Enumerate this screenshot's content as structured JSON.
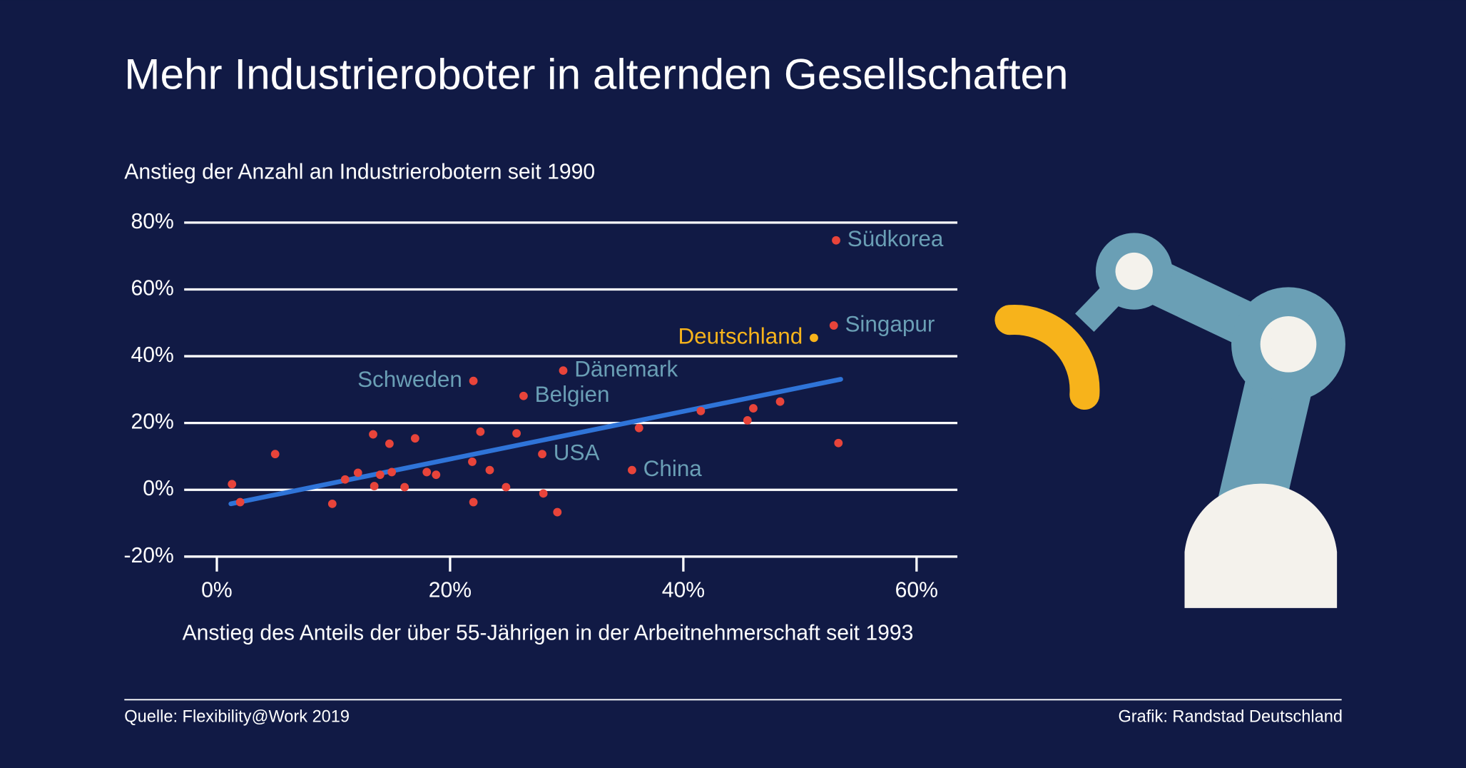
{
  "chart_data": {
    "type": "scatter",
    "title": "Mehr Industrieroboter in alternden Gesellschaften",
    "y_label": "Anstieg der Anzahl an Industrierobotern seit 1990",
    "x_label": "Anstieg des Anteils der über 55-Jährigen in der Arbeitnehmerschaft seit 1993",
    "source": "Quelle: Flexibility@Work 2019",
    "credit": "Grafik: Randstad Deutschland",
    "xlim": [
      -2.8,
      63.5
    ],
    "ylim": [
      -20,
      80
    ],
    "xticks": [
      {
        "value": 0,
        "label": "0%"
      },
      {
        "value": 20,
        "label": "20%"
      },
      {
        "value": 40,
        "label": "40%"
      },
      {
        "value": 60,
        "label": "60%"
      }
    ],
    "yticks": [
      {
        "value": -20,
        "label": "-20%"
      },
      {
        "value": 0,
        "label": "0%"
      },
      {
        "value": 20,
        "label": "20%"
      },
      {
        "value": 40,
        "label": "40%"
      },
      {
        "value": 60,
        "label": "60%"
      },
      {
        "value": 80,
        "label": "80%"
      }
    ],
    "grid": true,
    "series": [
      {
        "color": "#e8443a",
        "label_color": "#6a9fb5",
        "x": [
          53.1,
          52.9,
          29.7,
          22.0,
          26.3,
          27.9,
          35.6,
          1.3,
          2.0,
          5.0,
          9.9,
          11.0,
          12.1,
          13.4,
          13.5,
          14.0,
          14.8,
          15.0,
          16.1,
          17.0,
          18.0,
          18.8,
          21.9,
          22.0,
          22.6,
          23.4,
          24.8,
          25.7,
          28.0,
          29.2,
          36.2,
          41.5,
          45.5,
          46.0,
          48.3,
          53.3
        ],
        "values": [
          74.7,
          49.2,
          35.7,
          32.6,
          28.1,
          10.7,
          5.9,
          1.7,
          -3.7,
          10.7,
          -4.2,
          3.1,
          5.1,
          16.6,
          1.1,
          4.5,
          13.8,
          5.3,
          0.8,
          15.4,
          5.3,
          4.5,
          8.4,
          -3.7,
          17.4,
          5.9,
          0.8,
          16.9,
          -1.1,
          -6.7,
          18.5,
          23.6,
          20.8,
          24.4,
          26.4,
          14.0
        ],
        "labels": [
          "Südkorea",
          "Singapur",
          "Dänemark",
          "Schweden",
          "Belgien",
          "USA",
          "China",
          null,
          null,
          null,
          null,
          null,
          null,
          null,
          null,
          null,
          null,
          null,
          null,
          null,
          null,
          null,
          null,
          null,
          null,
          null,
          null,
          null,
          null,
          null,
          null,
          null,
          null,
          null,
          null,
          null
        ]
      },
      {
        "color": "#f7b31b",
        "label_color": "#f7b31b",
        "x": [
          51.2
        ],
        "values": [
          45.5
        ],
        "labels": [
          "Deutschland"
        ]
      }
    ],
    "trendline": {
      "color": "#2f74d8",
      "x": [
        1.2,
        53.5
      ],
      "values": [
        -4.2,
        33.1
      ]
    }
  }
}
